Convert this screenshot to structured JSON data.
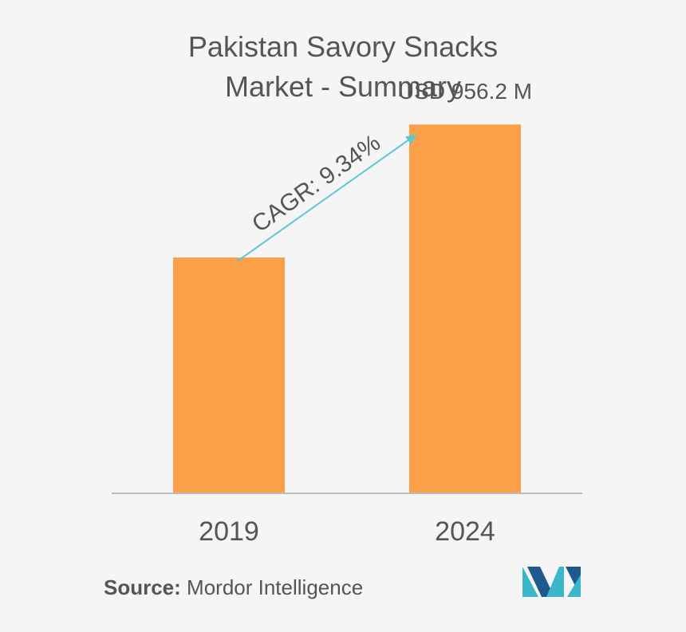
{
  "title_line1": "Pakistan Savory Snacks",
  "title_line2": "Market - Summary",
  "source": {
    "label": "Source:",
    "text": "Mordor Intelligence"
  },
  "colors": {
    "bar": "#fba049",
    "arrow": "#5bc8d6",
    "axis": "#bbbbbb",
    "text": "#555555",
    "logo_teal": "#3ab7c8",
    "logo_blue": "#1f5a8f"
  },
  "chart_data": {
    "type": "bar",
    "categories": [
      "2019",
      "2024"
    ],
    "values": [
      611.4,
      956.2
    ],
    "data_labels": [
      "",
      "USD 956.2 M"
    ],
    "annotation": "CAGR: 9.34%",
    "ylim": [
      0,
      1000
    ],
    "grid": false,
    "legend": "none"
  }
}
